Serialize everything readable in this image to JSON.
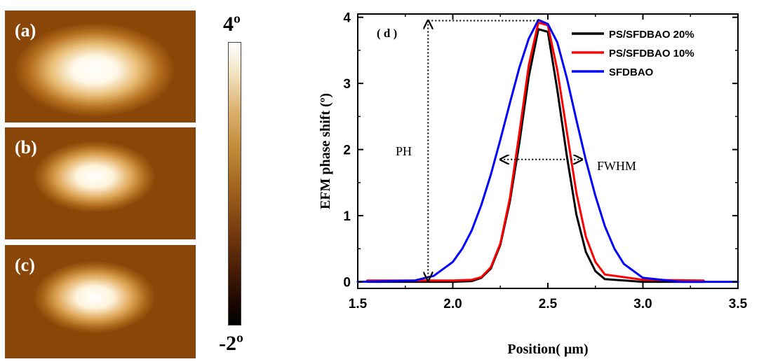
{
  "afm_panels": [
    {
      "label": "(a)",
      "spot_size": "large"
    },
    {
      "label": "(b)",
      "spot_size": "small"
    },
    {
      "label": "(c)",
      "spot_size": "small"
    }
  ],
  "colorbar": {
    "max_label": "4º",
    "min_label": "-2º",
    "colormap": "afmhot-brown"
  },
  "chart_data": {
    "type": "line",
    "panel_label": "( d )",
    "xlabel": "Position( μm)",
    "ylabel": "EFM phase shift (º)",
    "xlim": [
      1.5,
      3.5
    ],
    "ylim": [
      -0.1,
      4.05
    ],
    "xticks": [
      "1.5",
      "2.0",
      "2.5",
      "3.0",
      "3.5"
    ],
    "yticks": [
      "0",
      "1",
      "2",
      "3",
      "4"
    ],
    "grid": false,
    "legend_position": "top-right",
    "series": [
      {
        "name": "PS/SFDBAO 20%",
        "color": "#000000",
        "x": [
          1.55,
          2.0,
          2.1,
          2.15,
          2.2,
          2.25,
          2.3,
          2.35,
          2.4,
          2.45,
          2.5,
          2.55,
          2.6,
          2.65,
          2.7,
          2.75,
          2.8,
          3.0,
          3.32
        ],
        "y": [
          0.0,
          0.0,
          0.01,
          0.06,
          0.2,
          0.56,
          1.21,
          2.1,
          3.11,
          3.82,
          3.78,
          2.9,
          1.9,
          1.02,
          0.45,
          0.16,
          0.04,
          0.0,
          0.0
        ]
      },
      {
        "name": "PS/SFDBAO 10%",
        "color": "#ff0000",
        "x": [
          1.55,
          2.0,
          2.1,
          2.15,
          2.2,
          2.25,
          2.3,
          2.35,
          2.4,
          2.45,
          2.5,
          2.55,
          2.6,
          2.65,
          2.7,
          2.75,
          2.8,
          3.0,
          3.32
        ],
        "y": [
          0.02,
          0.02,
          0.03,
          0.07,
          0.22,
          0.58,
          1.26,
          2.25,
          3.28,
          3.92,
          3.88,
          3.2,
          2.27,
          1.35,
          0.68,
          0.3,
          0.11,
          0.03,
          0.02
        ]
      },
      {
        "name": "SFDBAO",
        "color": "#0000ff",
        "x": [
          1.5,
          1.8,
          1.9,
          2.0,
          2.05,
          2.1,
          2.15,
          2.2,
          2.25,
          2.3,
          2.35,
          2.4,
          2.45,
          2.5,
          2.55,
          2.6,
          2.65,
          2.7,
          2.75,
          2.8,
          2.85,
          2.9,
          3.0,
          3.2,
          3.5
        ],
        "y": [
          0.0,
          0.02,
          0.09,
          0.3,
          0.5,
          0.78,
          1.16,
          1.62,
          2.15,
          2.7,
          3.24,
          3.68,
          3.96,
          3.9,
          3.62,
          3.08,
          2.45,
          1.84,
          1.3,
          0.84,
          0.5,
          0.27,
          0.06,
          0.0,
          0.0
        ]
      }
    ],
    "annotations": {
      "ph_label": "PH",
      "fwhm_label": "FWHM",
      "ph_x": 1.87,
      "ph_y_top": 3.95,
      "ph_y_bottom": 0.0,
      "fwhm_x_start": 2.25,
      "fwhm_x_end": 2.68,
      "fwhm_y": 1.85,
      "peak_x": 2.45
    }
  }
}
